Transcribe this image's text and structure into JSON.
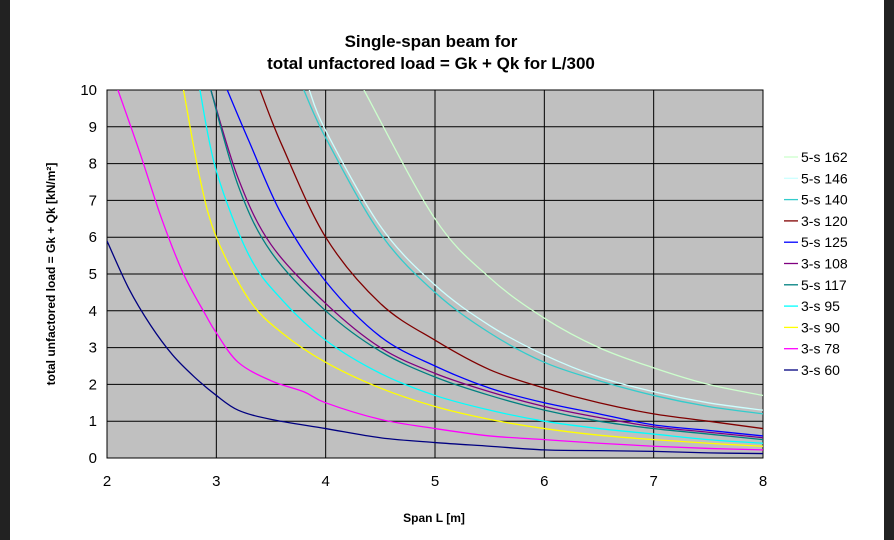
{
  "chart_data": {
    "type": "line",
    "title": [
      "Single-span beam for",
      "total unfactored load = Gk + Qk for L/300"
    ],
    "xlabel": "Span L [m]",
    "ylabel": "total unfactored load = Gk + Qk [kN/m²]",
    "xlim": [
      2,
      8
    ],
    "ylim": [
      0,
      10
    ],
    "xticks": [
      2,
      3,
      4,
      5,
      6,
      7,
      8
    ],
    "yticks": [
      0,
      1,
      2,
      3,
      4,
      5,
      6,
      7,
      8,
      9,
      10
    ],
    "grid": true,
    "plot_background": "#c0c0c0",
    "legend_position": "right",
    "series": [
      {
        "name": "5-s 162",
        "color": "#ccffcc",
        "x": [
          4.35,
          5,
          5.5,
          6,
          6.5,
          7,
          7.5,
          8
        ],
        "y": [
          10,
          6.5,
          4.9,
          3.8,
          3.0,
          2.45,
          2.0,
          1.7
        ]
      },
      {
        "name": "5-s 146",
        "color": "#ccffff",
        "x": [
          3.85,
          4,
          4.5,
          5,
          5.5,
          6,
          6.5,
          7,
          7.5,
          8
        ],
        "y": [
          10,
          8.9,
          6.3,
          4.7,
          3.6,
          2.8,
          2.2,
          1.8,
          1.5,
          1.3
        ]
      },
      {
        "name": "5-s 140",
        "color": "#33cccc",
        "x": [
          3.8,
          4,
          4.5,
          5,
          5.5,
          6,
          6.5,
          7,
          7.5,
          8
        ],
        "y": [
          10,
          8.7,
          6.1,
          4.5,
          3.4,
          2.6,
          2.1,
          1.7,
          1.4,
          1.2
        ]
      },
      {
        "name": "3-s 120",
        "color": "#800000",
        "x": [
          3.4,
          3.6,
          4,
          4.5,
          5,
          5.5,
          6,
          6.5,
          7,
          7.5,
          8
        ],
        "y": [
          10,
          8.5,
          6.0,
          4.2,
          3.2,
          2.4,
          1.9,
          1.5,
          1.2,
          1.0,
          0.8
        ]
      },
      {
        "name": "5-s 125",
        "color": "#0000ff",
        "x": [
          3.1,
          3.3,
          3.6,
          4,
          4.5,
          5,
          5.5,
          6,
          6.5,
          7,
          7.5,
          8
        ],
        "y": [
          10,
          8.6,
          6.6,
          4.8,
          3.3,
          2.5,
          1.9,
          1.5,
          1.2,
          0.9,
          0.75,
          0.6
        ]
      },
      {
        "name": "3-s 108",
        "color": "#800080",
        "x": [
          2.95,
          3.2,
          3.5,
          4,
          4.5,
          5,
          5.5,
          6,
          6.5,
          7,
          7.5,
          8
        ],
        "y": [
          10,
          7.6,
          5.8,
          4.2,
          3.0,
          2.3,
          1.8,
          1.4,
          1.1,
          0.85,
          0.7,
          0.55
        ]
      },
      {
        "name": "5-s 117",
        "color": "#008080",
        "x": [
          2.95,
          3.2,
          3.5,
          4,
          4.5,
          5,
          5.5,
          6,
          6.5,
          7,
          7.5,
          8
        ],
        "y": [
          10,
          7.4,
          5.6,
          4.0,
          2.9,
          2.2,
          1.7,
          1.3,
          1.0,
          0.8,
          0.65,
          0.5
        ]
      },
      {
        "name": "3-s 95",
        "color": "#00ffff",
        "x": [
          2.85,
          3,
          3.3,
          3.6,
          4,
          4.5,
          5,
          5.5,
          6,
          6.5,
          7,
          7.5,
          8
        ],
        "y": [
          10,
          7.8,
          5.5,
          4.3,
          3.2,
          2.3,
          1.7,
          1.3,
          1.0,
          0.8,
          0.65,
          0.5,
          0.4
        ]
      },
      {
        "name": "3-s 90",
        "color": "#ffff00",
        "x": [
          2.7,
          2.85,
          3,
          3.3,
          3.6,
          4,
          4.5,
          5,
          5.5,
          6,
          6.5,
          7,
          7.5,
          8
        ],
        "y": [
          10,
          7.6,
          6.0,
          4.3,
          3.4,
          2.6,
          1.9,
          1.4,
          1.05,
          0.8,
          0.62,
          0.5,
          0.4,
          0.32
        ]
      },
      {
        "name": "3-s 78",
        "color": "#ff00ff",
        "x": [
          2.1,
          2.3,
          2.5,
          2.7,
          2.9,
          3,
          3.2,
          3.5,
          3.8,
          4,
          4.5,
          5,
          5.5,
          6,
          6.5,
          7,
          7.5,
          8
        ],
        "y": [
          10,
          8.3,
          6.5,
          5.0,
          3.9,
          3.4,
          2.6,
          2.1,
          1.8,
          1.5,
          1.05,
          0.8,
          0.6,
          0.5,
          0.4,
          0.32,
          0.26,
          0.22
        ]
      },
      {
        "name": "3-s 60",
        "color": "#000080",
        "x": [
          2,
          2.2,
          2.4,
          2.6,
          2.8,
          3,
          3.2,
          3.5,
          4,
          4.5,
          5,
          5.5,
          6,
          6.5,
          7,
          7.5,
          8
        ],
        "y": [
          5.9,
          4.6,
          3.6,
          2.8,
          2.2,
          1.7,
          1.3,
          1.05,
          0.8,
          0.55,
          0.42,
          0.32,
          0.22,
          0.2,
          0.18,
          0.14,
          0.12
        ]
      }
    ]
  }
}
